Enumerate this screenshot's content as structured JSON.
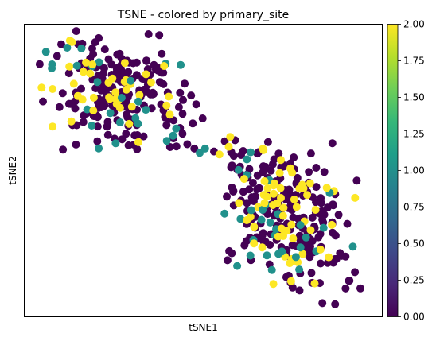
{
  "chart_data": {
    "type": "scatter",
    "title": "TSNE - colored by primary_site",
    "xlabel": "tSNE1",
    "ylabel": "tSNE2",
    "xlim": [
      0,
      100
    ],
    "ylim": [
      0,
      100
    ],
    "grid": false,
    "legend": "none",
    "colorbar": {
      "position": "right",
      "colormap": "viridis",
      "range": [
        0.0,
        2.0
      ],
      "ticks": [
        0.0,
        0.25,
        0.5,
        0.75,
        1.0,
        1.25,
        1.5,
        1.75,
        2.0
      ],
      "tick_labels": [
        "0.00",
        "0.25",
        "0.50",
        "0.75",
        "1.00",
        "1.25",
        "1.50",
        "1.75",
        "2.00"
      ]
    },
    "colors": {
      "0": "#440154",
      "1": "#21918c",
      "2": "#fde725"
    },
    "clusters": [
      {
        "cx": 28.0,
        "cy": 75.0,
        "sx": 11.0,
        "sy": 11.0,
        "rho": -0.35,
        "n": 260,
        "x_range": [
          3.5,
          50.0
        ],
        "y_range": [
          57.0,
          98.0
        ],
        "frac_teal": 0.1,
        "frac_yellow": 0.18
      },
      {
        "cx": 73.0,
        "cy": 34.0,
        "sx": 9.5,
        "sy": 13.5,
        "rho": -0.45,
        "n": 300,
        "x_range": [
          55.0,
          96.0
        ],
        "y_range": [
          4.0,
          62.0
        ],
        "frac_teal": 0.1,
        "frac_yellow": 0.18
      }
    ],
    "bridge_points": [
      {
        "x": 47.5,
        "y": 57.5,
        "v": 0
      },
      {
        "x": 49.0,
        "y": 56.0,
        "v": 1
      },
      {
        "x": 50.5,
        "y": 57.5,
        "v": 1
      },
      {
        "x": 53.0,
        "y": 56.5,
        "v": 0
      },
      {
        "x": 54.5,
        "y": 55.5,
        "v": 2
      },
      {
        "x": 56.0,
        "y": 60.0,
        "v": 0
      },
      {
        "x": 57.5,
        "y": 61.5,
        "v": 2
      },
      {
        "x": 58.5,
        "y": 55.0,
        "v": 0
      }
    ]
  }
}
